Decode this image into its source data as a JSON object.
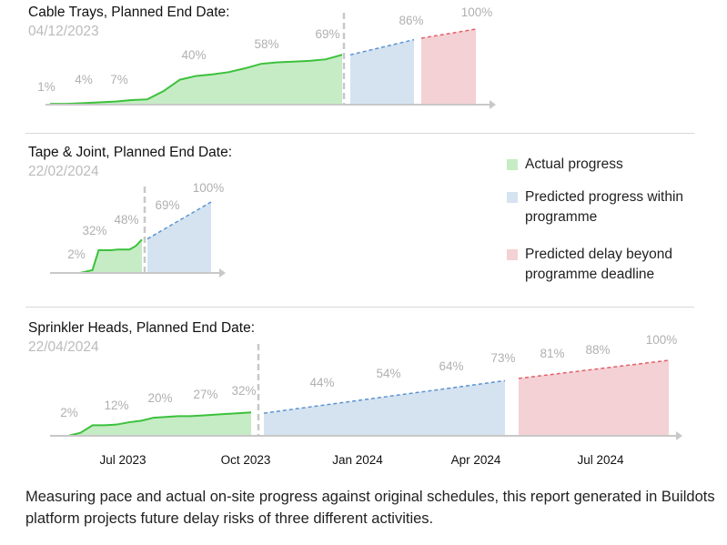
{
  "colors": {
    "actual": "#c6ecc5",
    "actual_line": "#3cc13c",
    "predicted": "#d5e3f0",
    "predicted_line": "#5b93d1",
    "delay": "#f4d1d4",
    "delay_line": "#e2606a",
    "axis": "#c8c8c8",
    "label": "#b0b0b0"
  },
  "legend": {
    "items": [
      {
        "label": "Actual progress",
        "color": "#c6ecc5"
      },
      {
        "label": "Predicted progress within programme",
        "color": "#d5e3f0"
      },
      {
        "label": "Predicted delay beyond programme deadline",
        "color": "#f4d1d4"
      }
    ]
  },
  "caption": "Measuring pace and actual on-site progress against original schedules, this report generated in Buildots platform projects future delay risks of three different activities.",
  "chart_data": [
    {
      "type": "area",
      "title": "Cable Trays, Planned End Date:",
      "planned_end_date": "04/12/2023",
      "actual_percent": [
        1,
        1,
        2,
        3,
        4,
        6,
        7,
        18,
        33,
        38,
        40,
        43,
        48,
        54,
        56,
        57,
        58,
        60,
        66
      ],
      "predicted_percent": [
        66,
        86
      ],
      "delay_percent": [
        88,
        100
      ],
      "labels": [
        "1%",
        "4%",
        "7%",
        "40%",
        "58%",
        "69%",
        "86%",
        "100%"
      ]
    },
    {
      "type": "area",
      "title": "Tape & Joint, Planned End Date:",
      "planned_end_date": "22/02/2024",
      "actual_percent": [
        0,
        2,
        4,
        32,
        32,
        32,
        33,
        33,
        33,
        38,
        47
      ],
      "predicted_percent": [
        48,
        100
      ],
      "delay_percent": [],
      "labels": [
        "2%",
        "32%",
        "48%",
        "69%",
        "100%"
      ]
    },
    {
      "type": "area",
      "title": "Sprinkler Heads, Planned End Date:",
      "planned_end_date": "22/04/2024",
      "x_ticks": [
        "Jul 2023",
        "Oct 2023",
        "Jan 2024",
        "Apr 2024",
        "Jul 2024"
      ],
      "actual_percent": [
        0,
        4,
        14,
        14,
        15,
        18,
        20,
        24,
        25,
        26,
        26,
        27,
        28,
        29,
        30,
        31
      ],
      "predicted_percent": [
        30,
        73
      ],
      "delay_percent": [
        76,
        100
      ],
      "labels": [
        "2%",
        "12%",
        "20%",
        "27%",
        "32%",
        "44%",
        "54%",
        "64%",
        "73%",
        "81%",
        "88%",
        "100%"
      ]
    }
  ]
}
